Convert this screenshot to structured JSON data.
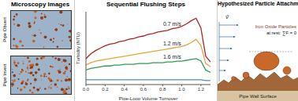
{
  "left_panel": {
    "title": "Microscopy Images",
    "images": [
      {
        "label": "Pipe Obvert"
      },
      {
        "label": "Pipe Invert"
      }
    ]
  },
  "chart_data": {
    "type": "line",
    "title": "Sequential Flushing Steps",
    "x_label": "Pipe-Loop Volume Turnover",
    "y_label": "Turbidity (NTU)",
    "x": [
      0,
      0.05,
      0.1,
      0.15,
      0.2,
      0.25,
      0.3,
      0.35,
      0.4,
      0.45,
      0.5,
      0.55,
      0.6,
      0.65,
      0.7,
      0.75,
      0.8,
      0.85,
      0.9,
      0.95,
      1.0,
      1.05,
      1.1,
      1.15,
      1.2,
      1.25,
      1.3
    ],
    "series": [
      {
        "name": "0.7 m/s",
        "color": "#b22222",
        "values": [
          3.2,
          3.8,
          4.2,
          4.5,
          4.8,
          5.0,
          5.1,
          5.3,
          5.4,
          5.6,
          5.7,
          5.9,
          6.0,
          6.2,
          6.3,
          6.5,
          6.6,
          6.7,
          6.9,
          7.0,
          7.2,
          7.5,
          7.9,
          8.2,
          7.0,
          3.5,
          2.8
        ]
      },
      {
        "name": "1.2 m/s",
        "color": "#e8a33d",
        "values": [
          2.4,
          2.7,
          2.9,
          3.0,
          3.1,
          3.2,
          3.3,
          3.4,
          3.5,
          3.6,
          3.7,
          3.8,
          3.9,
          4.0,
          4.1,
          4.2,
          4.3,
          4.4,
          4.5,
          4.6,
          4.7,
          4.9,
          5.2,
          5.6,
          4.8,
          2.6,
          2.2
        ]
      },
      {
        "name": "1.6 m/s",
        "color": "#2e9e4f",
        "values": [
          1.8,
          2.0,
          2.1,
          2.2,
          2.3,
          2.3,
          2.4,
          2.4,
          2.5,
          2.5,
          2.5,
          2.6,
          2.6,
          2.6,
          2.7,
          2.7,
          2.7,
          2.8,
          2.8,
          2.9,
          2.9,
          3.0,
          3.1,
          3.2,
          2.9,
          1.8,
          1.5
        ]
      },
      {
        "color": "#4a90c8",
        "values": [
          0.6,
          0.6,
          0.6,
          0.6,
          0.6,
          0.6,
          0.6,
          0.6,
          0.6,
          0.6,
          0.6,
          0.6,
          0.6,
          0.6,
          0.6,
          0.6,
          0.6,
          0.6,
          0.6,
          0.6,
          0.6,
          0.6,
          0.6,
          0.6,
          0.6,
          0.5,
          0.5
        ]
      }
    ],
    "xlim": [
      0,
      1.3
    ],
    "xticks": [
      {
        "value": 0,
        "label": "0.0"
      },
      0.2,
      0.4,
      0.6,
      0.8,
      {
        "value": 1,
        "label": "1.0"
      },
      1.2
    ],
    "ylim": [
      0,
      9
    ],
    "yticks": [],
    "tick_labels": "x",
    "grid": false
  },
  "right_panel": {
    "title": "Hypothesized Particle Attachment",
    "velocity": "v̄",
    "particles": "Iron Oxide Particles",
    "rest": "at rest: ∑F = 0",
    "wall": "Pipe Wall Surface"
  }
}
